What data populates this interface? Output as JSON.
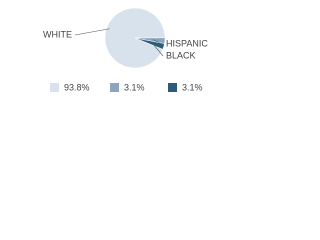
{
  "chart_data": {
    "type": "pie",
    "categories": [
      "WHITE",
      "HISPANIC",
      "BLACK"
    ],
    "values": [
      93.8,
      3.1,
      3.1
    ],
    "value_labels": [
      "93.8%",
      "3.1%",
      "3.1%"
    ],
    "colors": [
      "#d8e2ec",
      "#8ba5bd",
      "#2f5b7b"
    ]
  }
}
